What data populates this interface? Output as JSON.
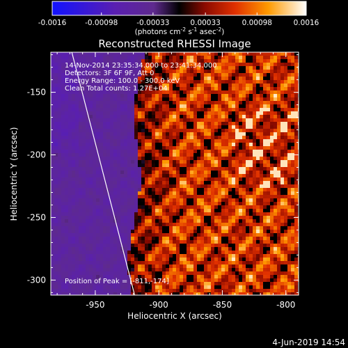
{
  "chart_data": {
    "type": "heatmap",
    "title": "Reconstructed RHESSI Image",
    "xlabel": "Heliocentric X (arcsec)",
    "ylabel": "Heliocentric Y (arcsec)",
    "xlim": [
      -985,
      -790
    ],
    "ylim": [
      -312,
      -118
    ],
    "x_ticks": [
      {
        "value": -950,
        "label": "-950"
      },
      {
        "value": -900,
        "label": "-900"
      },
      {
        "value": -850,
        "label": "-850"
      },
      {
        "value": -800,
        "label": "-800"
      }
    ],
    "y_ticks": [
      {
        "value": -150,
        "label": "-150"
      },
      {
        "value": -200,
        "label": "-200"
      },
      {
        "value": -250,
        "label": "-250"
      },
      {
        "value": -300,
        "label": "-300"
      }
    ],
    "colorbar": {
      "range": [
        -0.0016,
        0.0016
      ],
      "ticks": [
        {
          "value": -0.0016,
          "label": "-0.0016"
        },
        {
          "value": -0.00098,
          "label": "-0.00098"
        },
        {
          "value": -0.00033,
          "label": "-0.00033"
        },
        {
          "value": 0.00033,
          "label": "0.00033"
        },
        {
          "value": 0.00098,
          "label": "0.00098"
        },
        {
          "value": 0.0016,
          "label": "0.0016"
        }
      ],
      "units_main": "(photons cm",
      "units_exp1": "-2",
      "units_mid": " s",
      "units_exp2": "-1",
      "units_end": " asec",
      "units_exp3": "-2",
      "units_close": ")"
    },
    "annotations": [
      "14-Nov-2014 23:35:34.000 to 23:41:34.000",
      "Detectors: 3F 6F 9F, Att 0",
      "Energy Range: 100.0 - 300.0 keV",
      "Clean     Total counts: 1.27E+04"
    ],
    "peak_label": "Position of Peak = [-811,-174]",
    "peak": [
      -811,
      -174
    ],
    "limb_line": [
      [
        -970,
        -112
      ],
      [
        -918,
        -316
      ]
    ]
  },
  "footer": {
    "timestamp": "4-Jun-2019 14:54"
  }
}
